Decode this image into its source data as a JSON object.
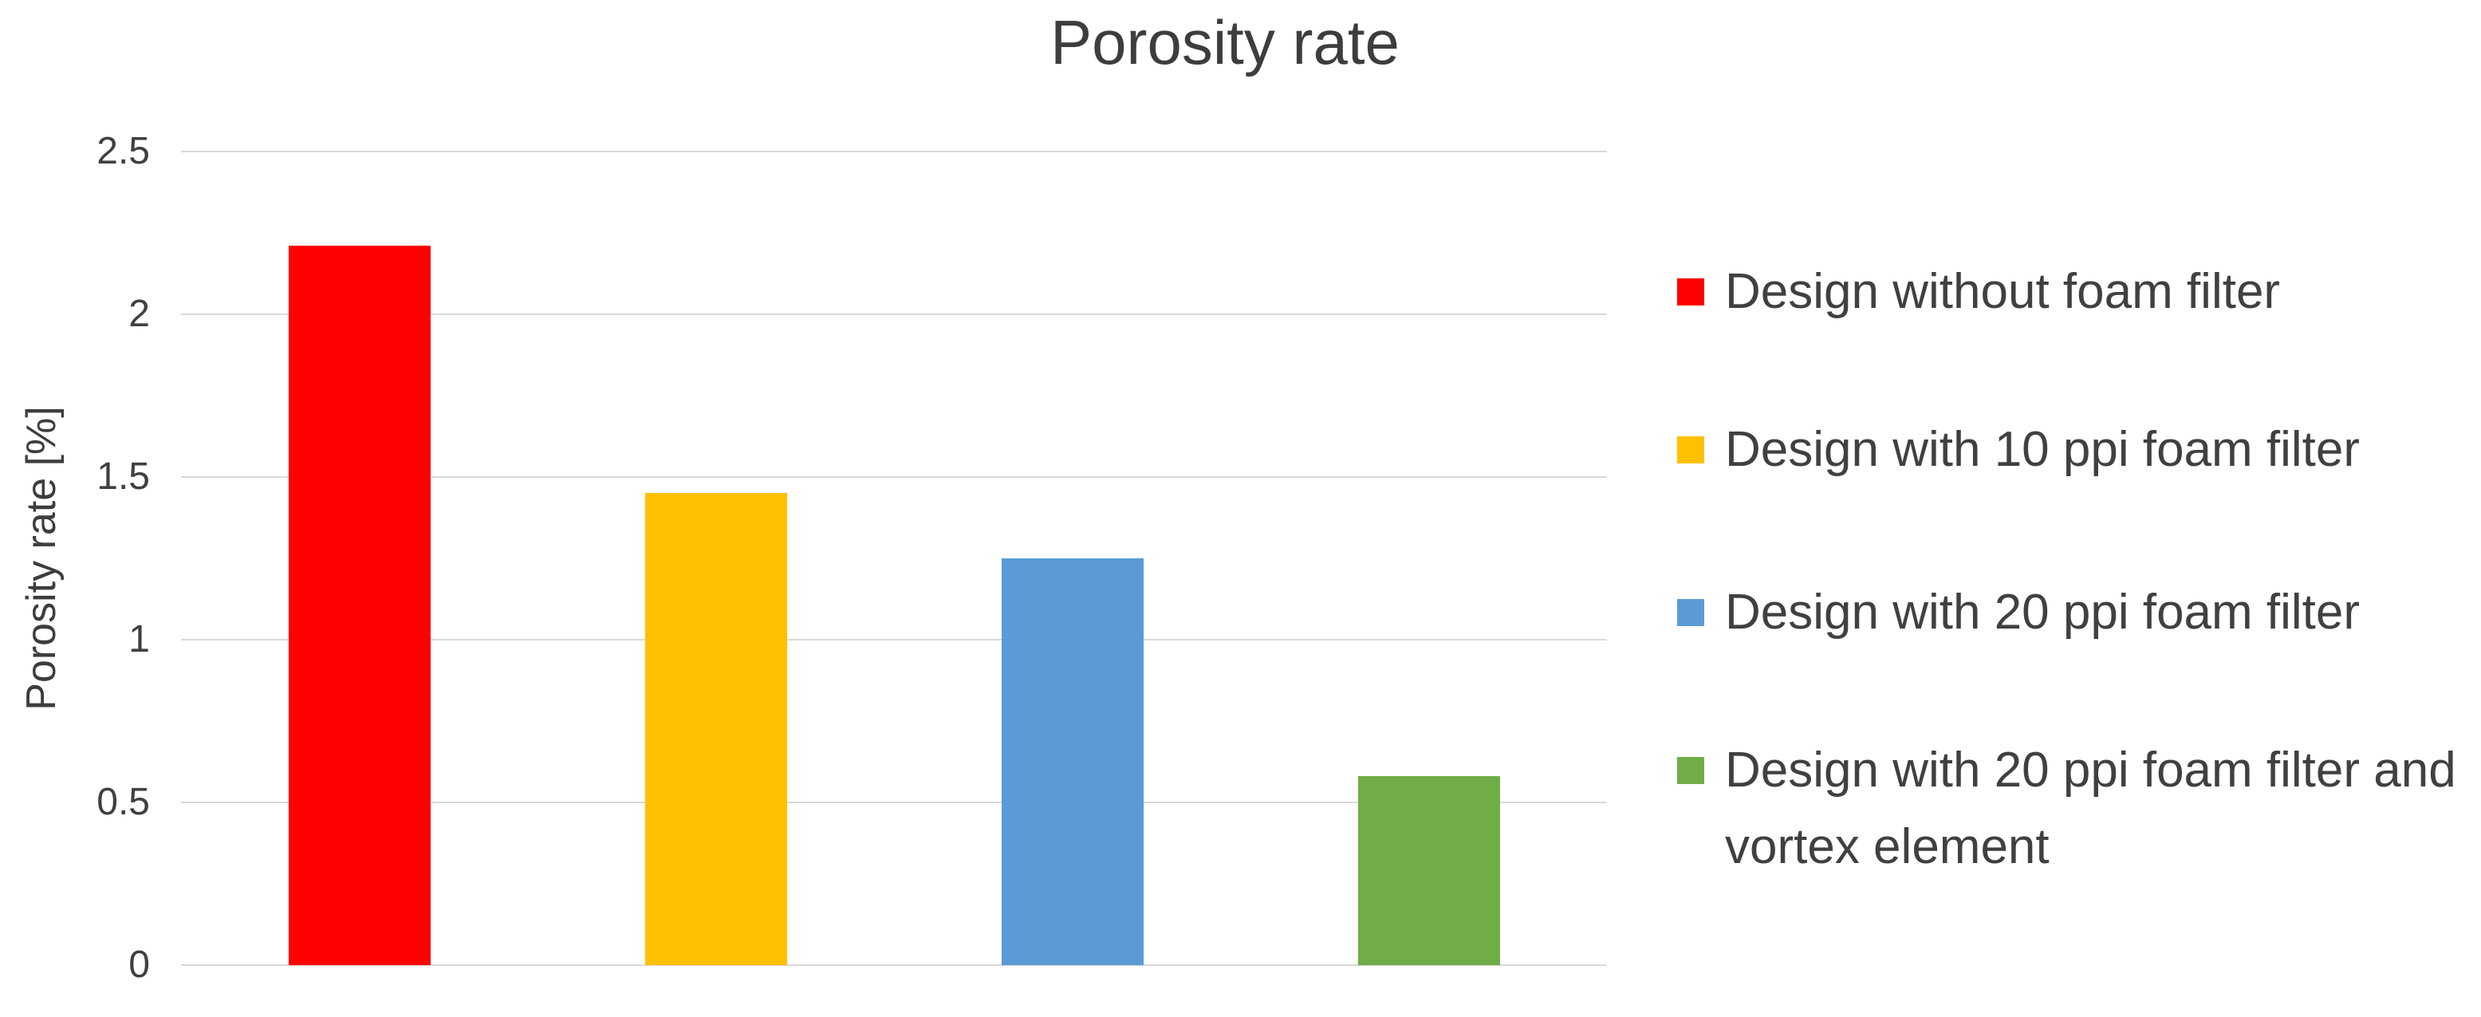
{
  "chart": {
    "title": "Porosity rate",
    "ylabel": "Porosity rate [%]"
  },
  "chart_data": {
    "type": "bar",
    "title": "Porosity rate",
    "xlabel": "",
    "ylabel": "Porosity rate [%]",
    "ylim": [
      0,
      2.5
    ],
    "yticks": [
      2.5,
      2,
      1.5,
      1,
      0.5,
      0
    ],
    "ytick_labels": [
      "2.5",
      "2",
      "1.5",
      "1",
      "0.5",
      "0"
    ],
    "grid": true,
    "gridline_color": "#d9d9d9",
    "legend_position": "right",
    "categories": [
      "Design without foam filter",
      "Design with 10 ppi foam filter",
      "Design with 20 ppi foam filter",
      "Design with 20 ppi foam filter and vortex element"
    ],
    "values": [
      2.21,
      1.45,
      1.25,
      0.58
    ],
    "colors": [
      "#ff0000",
      "#ffc000",
      "#5b9bd5",
      "#70ad47"
    ],
    "legend": [
      {
        "label": "Design without foam filter",
        "color": "#ff0000",
        "lines": [
          "Design without foam filter"
        ]
      },
      {
        "label": "Design with 10 ppi foam filter",
        "color": "#ffc000",
        "lines": [
          "Design with 10 ppi foam filter"
        ]
      },
      {
        "label": "Design with 20 ppi foam filter",
        "color": "#5b9bd5",
        "lines": [
          "Design with 20 ppi foam filter"
        ]
      },
      {
        "label": "Design with 20 ppi foam filter and vortex element",
        "color": "#70ad47",
        "lines": [
          "Design with 20 ppi foam filter and",
          "vortex element"
        ]
      }
    ]
  }
}
